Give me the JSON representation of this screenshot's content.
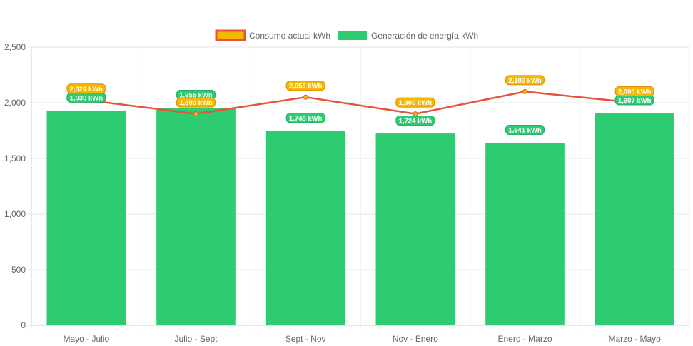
{
  "chart_data": {
    "type": "bar",
    "title": "",
    "xlabel": "",
    "ylabel": "",
    "categories": [
      "Mayo - Julio",
      "Julio - Sept",
      "Sept - Nov",
      "Nov - Enero",
      "Enero - Marzo",
      "Marzo - Mayo"
    ],
    "ylim": [
      0,
      2500
    ],
    "yticks": [
      0,
      500,
      1000,
      1500,
      2000,
      2500
    ],
    "ytick_labels": [
      "0",
      "500",
      "1,000",
      "1,500",
      "2,000",
      "2,500"
    ],
    "grid": true,
    "legend_position": "top",
    "series": [
      {
        "name": "Consumo actual kWh",
        "type": "line",
        "color": "#e8523a",
        "label_color": "#f5b700",
        "values": [
          2024,
          1900,
          2050,
          1900,
          2100,
          2000
        ],
        "labels": [
          "2,024 kWh",
          "1,900 kWh",
          "2,050 kWh",
          "1,900 kWh",
          "2,100 kWh",
          "2,000 kWh"
        ]
      },
      {
        "name": "Generación de energía kWh",
        "type": "bar",
        "color": "#2ecc71",
        "values": [
          1930,
          1955,
          1748,
          1724,
          1641,
          1907
        ],
        "labels": [
          "1,930 kWh",
          "1,955 kWh",
          "1,748 kWh",
          "1,724 kWh",
          "1,641 kWh",
          "1,907 kWh"
        ]
      }
    ]
  }
}
